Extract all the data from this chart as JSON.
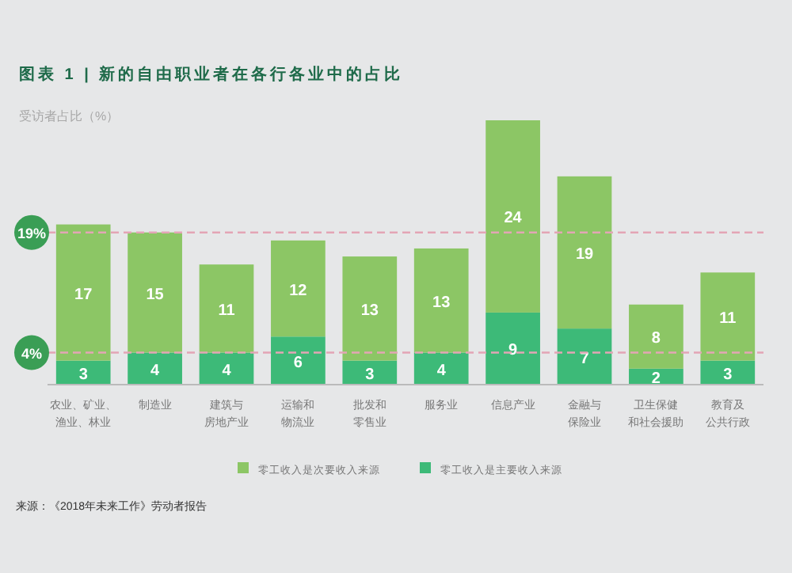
{
  "chart_data": {
    "type": "bar",
    "stacked": true,
    "title": "图表 1 | 新的自由职业者在各行各业中的占比",
    "ylabel": "受访者占比（%）",
    "categories": [
      "农业、矿业、渔业、林业",
      "制造业",
      "建筑与房地产业",
      "运输和物流业",
      "批发和零售业",
      "服务业",
      "信息产业",
      "金融与保险业",
      "卫生保健和社会援助",
      "教育及公共行政"
    ],
    "series": [
      {
        "name": "零工收入是主要收入来源",
        "color": "#3dba78",
        "values": [
          3,
          4,
          4,
          6,
          3,
          4,
          9,
          7,
          2,
          3
        ]
      },
      {
        "name": "零工收入是次要收入来源",
        "color": "#8cc665",
        "values": [
          17,
          15,
          11,
          12,
          13,
          13,
          24,
          19,
          8,
          11
        ]
      }
    ],
    "data_labels": true,
    "legend": "bottom",
    "ref_lines": [
      {
        "axis": "y",
        "value": 19,
        "label": "19%",
        "color": "#e3a5b5",
        "line_style": "dashed"
      },
      {
        "axis": "y",
        "value": 4,
        "label": "4%",
        "color": "#e3a5b5",
        "line_style": "dashed"
      }
    ],
    "annotations": [
      "来源：《2018年未来工作》劳动者报告"
    ]
  }
}
